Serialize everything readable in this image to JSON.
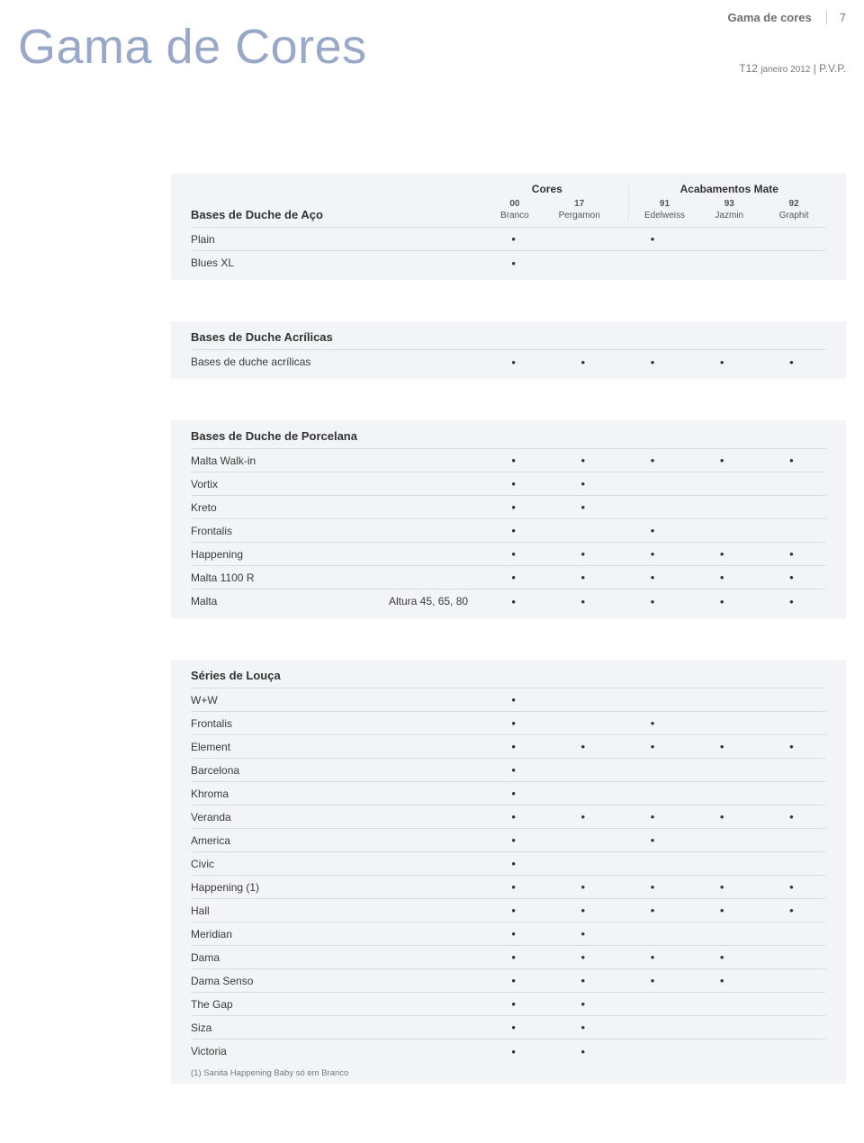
{
  "header": {
    "section_name": "Gama de cores",
    "page_number": "7",
    "big_title": "Gama de Cores",
    "pvp_prefix": "T12",
    "pvp_small": "janeiro 2012",
    "pvp_suffix": "P.V.P."
  },
  "columns": {
    "groups": [
      {
        "title": "Cores",
        "cols": [
          {
            "code": "00",
            "name": "Branco"
          },
          {
            "code": "17",
            "name": "Pergamon"
          }
        ]
      },
      {
        "title": "Acabamentos Mate",
        "cols": [
          {
            "code": "91",
            "name": "Edelweiss"
          },
          {
            "code": "93",
            "name": "Jazmin"
          },
          {
            "code": "92",
            "name": "Graphit"
          }
        ]
      }
    ]
  },
  "blocks": [
    {
      "title": "Bases de Duche de Aço",
      "show_groups": true,
      "rows": [
        {
          "label": "Plain",
          "extra": "",
          "marks": [
            true,
            false,
            true,
            false,
            false
          ]
        },
        {
          "label": "Blues XL",
          "extra": "",
          "marks": [
            true,
            false,
            false,
            false,
            false
          ]
        }
      ]
    },
    {
      "title": "Bases de Duche Acrílicas",
      "show_groups": false,
      "rows": [
        {
          "label": "Bases de duche acrílicas",
          "extra": "",
          "marks": [
            true,
            true,
            true,
            true,
            true
          ]
        }
      ]
    },
    {
      "title": "Bases de Duche de Porcelana",
      "show_groups": false,
      "rows": [
        {
          "label": "Malta Walk-in",
          "extra": "",
          "marks": [
            true,
            true,
            true,
            true,
            true
          ]
        },
        {
          "label": "Vortix",
          "extra": "",
          "marks": [
            true,
            true,
            false,
            false,
            false
          ]
        },
        {
          "label": "Kreto",
          "extra": "",
          "marks": [
            true,
            true,
            false,
            false,
            false
          ]
        },
        {
          "label": "Frontalis",
          "extra": "",
          "marks": [
            true,
            false,
            true,
            false,
            false
          ]
        },
        {
          "label": "Happening",
          "extra": "",
          "marks": [
            true,
            true,
            true,
            true,
            true
          ]
        },
        {
          "label": "Malta 1100 R",
          "extra": "",
          "marks": [
            true,
            true,
            true,
            true,
            true
          ]
        },
        {
          "label": "Malta",
          "extra": "Altura 45, 65, 80",
          "marks": [
            true,
            true,
            true,
            true,
            true
          ]
        }
      ]
    },
    {
      "title": "Séries de Louça",
      "show_groups": false,
      "rows": [
        {
          "label": "W+W",
          "extra": "",
          "marks": [
            true,
            false,
            false,
            false,
            false
          ]
        },
        {
          "label": "Frontalis",
          "extra": "",
          "marks": [
            true,
            false,
            true,
            false,
            false
          ]
        },
        {
          "label": "Element",
          "extra": "",
          "marks": [
            true,
            true,
            true,
            true,
            true
          ]
        },
        {
          "label": "Barcelona",
          "extra": "",
          "marks": [
            true,
            false,
            false,
            false,
            false
          ]
        },
        {
          "label": "Khroma",
          "extra": "",
          "marks": [
            true,
            false,
            false,
            false,
            false
          ]
        },
        {
          "label": "Veranda",
          "extra": "",
          "marks": [
            true,
            true,
            true,
            true,
            true
          ]
        },
        {
          "label": "America",
          "extra": "",
          "marks": [
            true,
            false,
            true,
            false,
            false
          ]
        },
        {
          "label": "Civic",
          "extra": "",
          "marks": [
            true,
            false,
            false,
            false,
            false
          ]
        },
        {
          "label": "Happening (1)",
          "extra": "",
          "marks": [
            true,
            true,
            true,
            true,
            true
          ]
        },
        {
          "label": "Hall",
          "extra": "",
          "marks": [
            true,
            true,
            true,
            true,
            true
          ]
        },
        {
          "label": "Meridian",
          "extra": "",
          "marks": [
            true,
            true,
            false,
            false,
            false
          ]
        },
        {
          "label": "Dama",
          "extra": "",
          "marks": [
            true,
            true,
            true,
            true,
            false
          ]
        },
        {
          "label": "Dama Senso",
          "extra": "",
          "marks": [
            true,
            true,
            true,
            true,
            false
          ]
        },
        {
          "label": "The Gap",
          "extra": "",
          "marks": [
            true,
            true,
            false,
            false,
            false
          ]
        },
        {
          "label": "Siza",
          "extra": "",
          "marks": [
            true,
            true,
            false,
            false,
            false
          ]
        },
        {
          "label": "Victoria",
          "extra": "",
          "marks": [
            true,
            true,
            false,
            false,
            false
          ]
        }
      ],
      "footnote": "(1) Sanita Happening Baby só em Branco"
    }
  ],
  "style": {
    "block_bg": "#f3f4f7",
    "row_border": "#dcdde0",
    "title_color": "#9aa8c7",
    "text_color": "#333333",
    "muted_color": "#7a7a7a"
  }
}
